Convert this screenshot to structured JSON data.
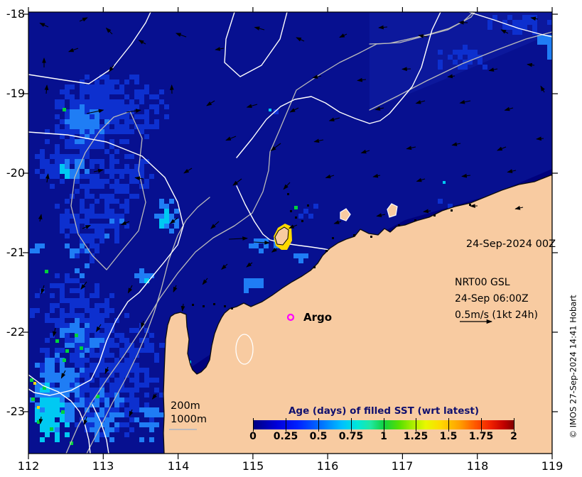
{
  "map": {
    "date_stamp": "24-Sep-2024 00Z",
    "argo_label": "Argo",
    "velocity_legend": {
      "model": "NRT00 GSL",
      "valid_time": "24-Sep 06:00Z",
      "scale": "0.5m/s (1kt 24h)"
    },
    "depth_legend": {
      "shallow": "200m",
      "deep": "1000m"
    }
  },
  "axes": {
    "lon": [
      "112",
      "113",
      "114",
      "115",
      "116",
      "117",
      "118",
      "119"
    ],
    "lat": [
      "-18",
      "-19",
      "-20",
      "-21",
      "-22",
      "-23"
    ]
  },
  "colorbar": {
    "title": "Age (days) of filled SST (wrt latest)",
    "ticks": [
      "0",
      "0.25",
      "0.5",
      "0.75",
      "1",
      "1.25",
      "1.5",
      "1.75",
      "2"
    ]
  },
  "credit": "© IMOS 27-Sep-2024 14:41 Hobart",
  "colors": {
    "ocean": "#071090",
    "ocean_coastal": "#00017c",
    "ocean_offshore_patch": "#0d30cf",
    "age_quarter_blue": "#1f7df5",
    "age_half_cyan": "#00c9f2",
    "age_one_green": "#00d23c",
    "age_yellow": "#ffd900",
    "land": "#f8cba1",
    "contour_200m": "#ffffff",
    "contour_1000m": "#bbbbbb",
    "arrow": "#000000",
    "argo_marker": "#ff00ff",
    "colorbar_title": "#10106e"
  }
}
